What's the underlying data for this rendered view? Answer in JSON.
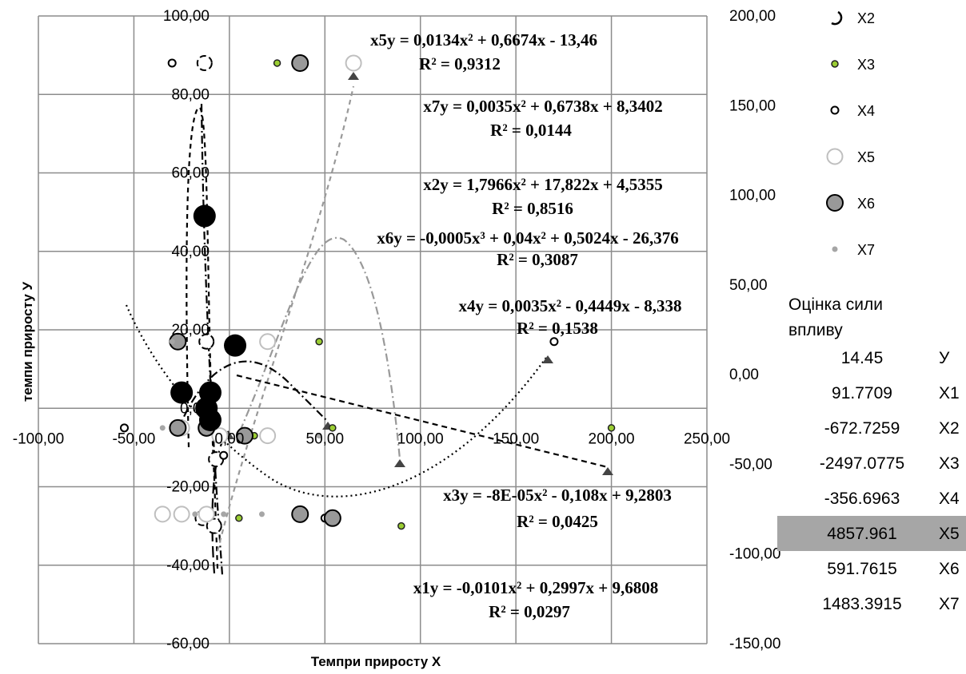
{
  "chart_data": {
    "type": "scatter",
    "title": "",
    "xlabel": "Темпри приросту Х",
    "ylabel": "темпи приросту У",
    "xlim": [
      -100,
      250
    ],
    "ylim_left": [
      -60,
      100
    ],
    "ylim_right": [
      -150,
      200
    ],
    "grid": true,
    "legend_position": "right",
    "x_ticks": [
      "-100,00",
      "-50,00",
      "0,00",
      "50,00",
      "100,00",
      "150,00",
      "200,00",
      "250,00"
    ],
    "y_left_ticks": [
      "100,00",
      "80,00",
      "60,00",
      "40,00",
      "20,00",
      "0,00",
      "-20,00",
      "-40,00",
      "-60,00"
    ],
    "y_right_ticks": [
      "200,00",
      "150,00",
      "100,00",
      "50,00",
      "0,00",
      "-50,00",
      "-100,00",
      "-150,00"
    ],
    "series": [
      {
        "name": "X2",
        "marker": "open-dashed-circle",
        "color": "#000000",
        "points": [
          [
            -13,
            88
          ],
          [
            -12,
            17
          ],
          [
            -14,
            -28
          ],
          [
            -8,
            -30
          ],
          [
            -7,
            -13
          ]
        ]
      },
      {
        "name": "X3",
        "marker": "small-green-dot",
        "color": "#9acd32",
        "points": [
          [
            25,
            88
          ],
          [
            47,
            17
          ],
          [
            54,
            -5
          ],
          [
            90,
            -30
          ],
          [
            200,
            -5
          ],
          [
            5,
            -28
          ],
          [
            13,
            -7
          ]
        ]
      },
      {
        "name": "X4",
        "marker": "small-open-circle",
        "color": "#000000",
        "points": [
          [
            -30,
            88
          ],
          [
            -55,
            -5
          ],
          [
            50,
            -28
          ],
          [
            170,
            17
          ],
          [
            -3,
            -12
          ]
        ]
      },
      {
        "name": "X5",
        "marker": "large-open-light-circle",
        "color": "#c8c8c8",
        "points": [
          [
            65,
            88
          ],
          [
            20,
            17
          ],
          [
            -35,
            -27
          ],
          [
            -25,
            -27
          ],
          [
            -12,
            -27
          ],
          [
            20,
            -7
          ],
          [
            -5,
            -7
          ],
          [
            -25,
            -5
          ]
        ]
      },
      {
        "name": "X6",
        "marker": "large-gray-circle",
        "color": "#999999",
        "points": [
          [
            37,
            88
          ],
          [
            -27,
            17
          ],
          [
            -27,
            -5
          ],
          [
            -12,
            -5
          ],
          [
            37,
            -27
          ],
          [
            54,
            -28
          ],
          [
            8,
            -7
          ]
        ]
      },
      {
        "name": "X7",
        "marker": "small-gray-dot",
        "color": "#a6a6a6",
        "points": [
          [
            -30,
            17
          ],
          [
            -35,
            -5
          ],
          [
            47,
            -7
          ],
          [
            17,
            -27
          ],
          [
            -3,
            -27
          ],
          [
            -18,
            -27
          ]
        ]
      },
      {
        "name": "",
        "marker": "large-black-circle",
        "color": "#000000",
        "points": [
          [
            -13,
            49
          ],
          [
            3,
            16
          ],
          [
            -25,
            4
          ],
          [
            -10,
            4
          ],
          [
            -12,
            0
          ],
          [
            -10,
            -3
          ]
        ]
      }
    ],
    "annotations": [
      {
        "series": "x5",
        "equation": "y = 0,0134x² + 0,6674x - 13,46",
        "r2": "R² = 0,9312"
      },
      {
        "series": "x7",
        "equation": "y = 0,0035x² + 0,6738x + 8,3402",
        "r2": "R² = 0,0144"
      },
      {
        "series": "x2",
        "equation": "y = 1,7966x² + 17,822x + 4,5355",
        "r2": "R² = 0,8516"
      },
      {
        "series": "x6",
        "equation": "y = -0,0005x³ + 0,04x² + 0,5024x - 26,376",
        "r2": "R² = 0,3087"
      },
      {
        "series": "x4",
        "equation": "y = 0,0035x² - 0,4449x - 8,338",
        "r2": "R² = 0,1538"
      },
      {
        "series": "x3",
        "equation": "y = -8E-05x² - 0,108x + 9,2803",
        "r2": "R² = 0,0425"
      },
      {
        "series": "x1",
        "equation": "y = -0,0101x² + 0,2997x + 9,6808",
        "r2": "R² = 0,0297"
      }
    ],
    "score_table": {
      "title": "Оцінка сили впливу",
      "title_lines": [
        "Оцінка сили",
        "впливу"
      ],
      "rows": [
        {
          "value": "14.45",
          "label": "У",
          "highlight": false
        },
        {
          "value": "91.7709",
          "label": "X1",
          "highlight": false
        },
        {
          "value": "-672.7259",
          "label": "X2",
          "highlight": false
        },
        {
          "value": "-2497.0775",
          "label": "X3",
          "highlight": false
        },
        {
          "value": "-356.6963",
          "label": "X4",
          "highlight": false
        },
        {
          "value": "4857.961",
          "label": "X5",
          "highlight": true
        },
        {
          "value": "591.7615",
          "label": "X6",
          "highlight": false
        },
        {
          "value": "1483.3915",
          "label": "X7",
          "highlight": false
        }
      ]
    }
  }
}
